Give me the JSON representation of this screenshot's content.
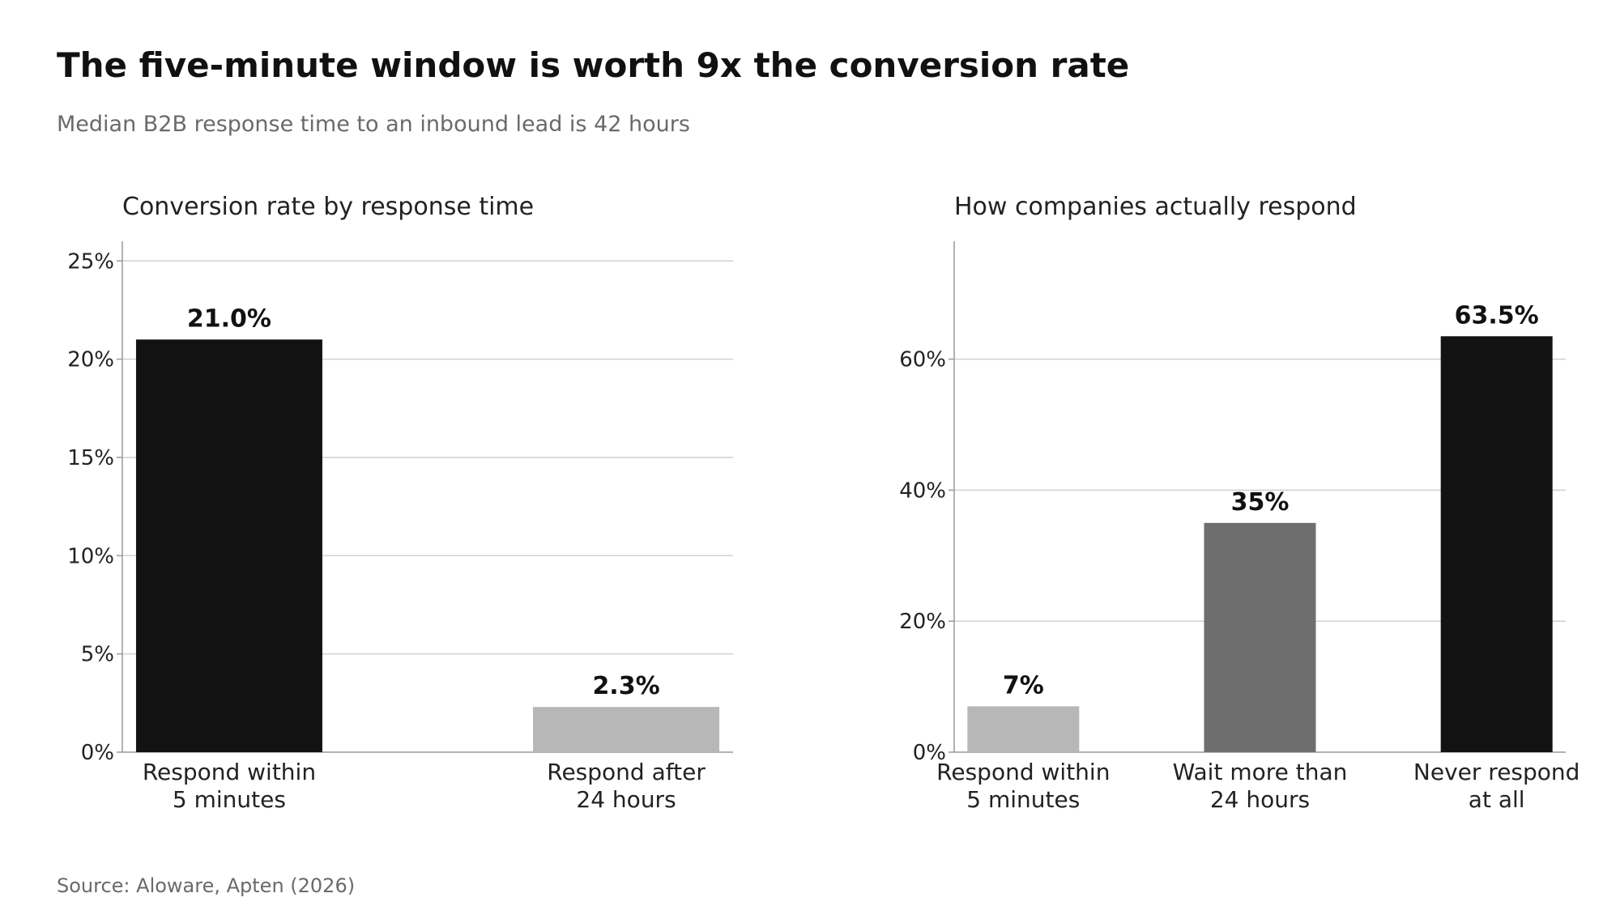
{
  "header": {
    "title": "The five-minute window is worth 9x the conversion rate",
    "subtitle": "Median B2B response time to an inbound lead is 42 hours"
  },
  "footer": {
    "source": "Source: Aloware, Apten (2026)"
  },
  "chart_data": [
    {
      "type": "bar",
      "title": "Conversion rate by response time",
      "categories": [
        [
          "Respond within",
          "5 minutes"
        ],
        [
          "Respond after",
          "24 hours"
        ]
      ],
      "values": [
        21.0,
        2.3
      ],
      "value_labels": [
        "21.0%",
        "2.3%"
      ],
      "colors": [
        "#121212",
        "#b7b7b7"
      ],
      "ylim": [
        0,
        26
      ],
      "yticks": [
        0,
        5,
        10,
        15,
        20,
        25
      ],
      "ytick_labels": [
        "0%",
        "5%",
        "10%",
        "15%",
        "20%",
        "25%"
      ],
      "grid": true,
      "xlabel": "",
      "ylabel": ""
    },
    {
      "type": "bar",
      "title": "How companies actually respond",
      "categories": [
        [
          "Respond within",
          "5 minutes"
        ],
        [
          "Wait more than",
          "24 hours"
        ],
        [
          "Never respond",
          "at all"
        ]
      ],
      "values": [
        7,
        35,
        63.5
      ],
      "value_labels": [
        "7%",
        "35%",
        "63.5%"
      ],
      "colors": [
        "#b7b7b7",
        "#6e6e6e",
        "#121212"
      ],
      "ylim": [
        0,
        78
      ],
      "yticks": [
        0,
        20,
        40,
        60
      ],
      "ytick_labels": [
        "0%",
        "20%",
        "40%",
        "60%"
      ],
      "grid": true,
      "xlabel": "",
      "ylabel": ""
    }
  ]
}
